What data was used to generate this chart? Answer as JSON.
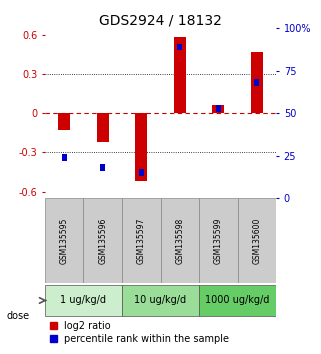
{
  "title": "GDS2924 / 18132",
  "samples": [
    "GSM135595",
    "GSM135596",
    "GSM135597",
    "GSM135598",
    "GSM135599",
    "GSM135600"
  ],
  "log2_ratio": [
    -0.13,
    -0.22,
    -0.52,
    0.58,
    0.06,
    0.47
  ],
  "percentile_rank": [
    24,
    18,
    15,
    89,
    53,
    68
  ],
  "doses": [
    {
      "label": "1 ug/kg/d",
      "color": "#cceecc"
    },
    {
      "label": "10 ug/kg/d",
      "color": "#99dd99"
    },
    {
      "label": "1000 ug/kg/d",
      "color": "#66cc66"
    }
  ],
  "bar_color_red": "#cc0000",
  "bar_color_blue": "#0000cc",
  "ylim": [
    -0.65,
    0.65
  ],
  "yticks_left": [
    -0.6,
    -0.3,
    0.0,
    0.3,
    0.6
  ],
  "yticks_right": [
    0,
    25,
    50,
    75,
    100
  ],
  "hline_color": "#cc0000",
  "dotted_color": "#000000",
  "bg_color": "#ffffff",
  "sample_bg": "#cccccc",
  "title_fontsize": 10,
  "tick_fontsize": 7,
  "dose_fontsize": 7,
  "legend_fontsize": 7
}
